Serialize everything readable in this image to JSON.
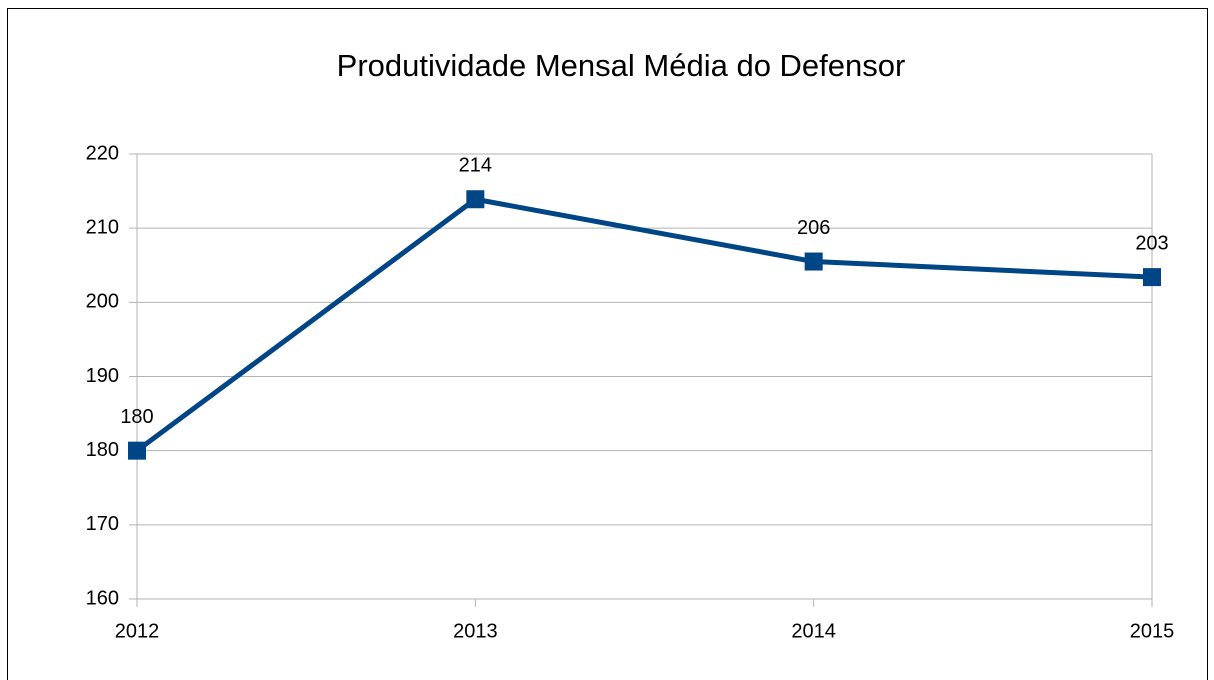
{
  "chart_data": {
    "type": "line",
    "title": "Produtividade Mensal Média do Defensor",
    "categories": [
      "2012",
      "2013",
      "2014",
      "2015"
    ],
    "series": [
      {
        "name": "Produtividade",
        "color": "#004586",
        "values": [
          180,
          213.9,
          205.5,
          203.4
        ],
        "value_labels": [
          "180",
          "214",
          "206",
          "203"
        ]
      }
    ],
    "ylim": [
      160,
      220
    ],
    "yticks": [
      160,
      170,
      180,
      190,
      200,
      210,
      220
    ],
    "grid": true,
    "legend": false
  }
}
